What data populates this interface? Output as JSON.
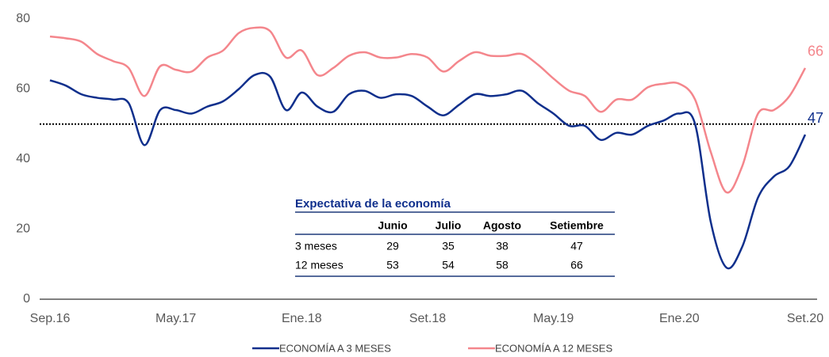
{
  "chart_data": {
    "type": "line",
    "categories": [
      "Sep.16",
      null,
      null,
      null,
      null,
      null,
      null,
      null,
      "May.17",
      null,
      null,
      null,
      null,
      null,
      null,
      null,
      "Ene.18",
      null,
      null,
      null,
      null,
      null,
      null,
      null,
      "Set.18",
      null,
      null,
      null,
      null,
      null,
      null,
      null,
      "May.19",
      null,
      null,
      null,
      null,
      null,
      null,
      null,
      "Ene.20",
      null,
      null,
      null,
      null,
      null,
      null,
      null,
      "Set.20"
    ],
    "series": [
      {
        "name": "ECONOMÍA A 3 MESES",
        "color": "#0f2f8c",
        "values": [
          62.5,
          61,
          58.5,
          57.5,
          57,
          56,
          44,
          54,
          54,
          53,
          55,
          56.5,
          60,
          64,
          63.5,
          54,
          59,
          55,
          53.5,
          58.5,
          59.5,
          57.5,
          58.5,
          58,
          55,
          52.5,
          55.5,
          58.5,
          58,
          58.5,
          59.5,
          56,
          53,
          49.5,
          49.5,
          45.5,
          47.5,
          47,
          49.5,
          51,
          53,
          50,
          22,
          9,
          15,
          29,
          35,
          38,
          47
        ]
      },
      {
        "name": "ECONOMÍA A 12 MESES",
        "color": "#f4868c",
        "values": [
          75,
          74.5,
          73.5,
          70,
          68,
          66,
          58,
          66.5,
          65.5,
          65,
          69,
          71,
          76,
          77.5,
          76.5,
          69,
          71,
          64,
          66,
          69.5,
          70.5,
          69,
          69,
          70,
          69,
          65,
          68,
          70.5,
          69.5,
          69.5,
          70,
          67,
          63,
          59.5,
          58,
          53.5,
          57,
          57,
          60.5,
          61.5,
          61.5,
          57,
          42,
          30.5,
          38,
          53,
          54,
          58,
          66
        ]
      }
    ],
    "ylim": [
      0,
      80
    ],
    "yticks": [
      0,
      20,
      40,
      60,
      80
    ],
    "reference_line": 50,
    "table": {
      "title": "Expectativa de la economía",
      "columns": [
        "Junio",
        "Julio",
        "Agosto",
        "Setiembre"
      ],
      "rows": [
        {
          "label": "3 meses",
          "values": [
            29,
            35,
            38,
            47
          ]
        },
        {
          "label": "12 meses",
          "values": [
            53,
            54,
            58,
            66
          ]
        }
      ]
    }
  }
}
